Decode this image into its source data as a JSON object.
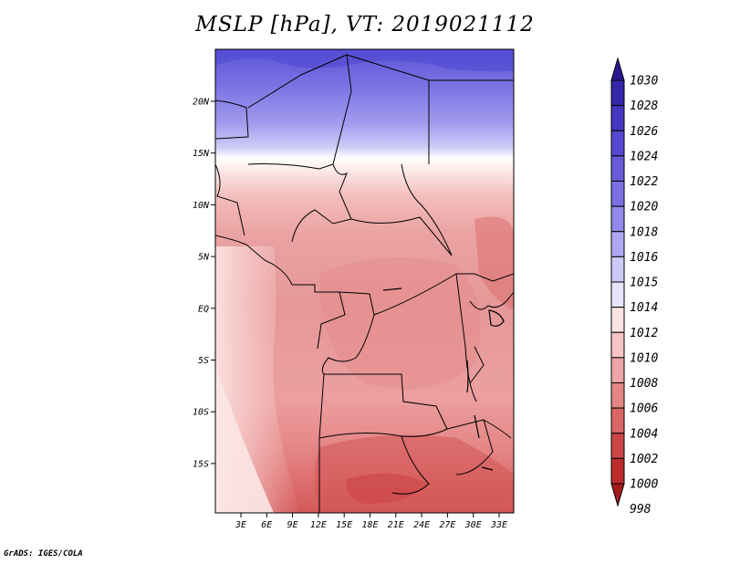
{
  "title": "MSLP [hPa], VT: 2019021112",
  "footer": "GrADS: IGES/COLA",
  "colors": {
    "frame": "#000000",
    "high": "#8f8ff0",
    "neutral": "#ffffff",
    "low": "#e07070"
  },
  "map": {
    "lat_ticks": [
      "20N",
      "15N",
      "10N",
      "5N",
      "EQ",
      "5S",
      "10S",
      "15S"
    ],
    "lon_ticks": [
      "3E",
      "6E",
      "9E",
      "12E",
      "15E",
      "18E",
      "21E",
      "24E",
      "27E",
      "30E",
      "33E"
    ]
  },
  "colorbar": {
    "labels": [
      "1030",
      "1028",
      "1026",
      "1024",
      "1022",
      "1020",
      "1018",
      "1016",
      "1015",
      "1014",
      "1012",
      "1010",
      "1008",
      "1006",
      "1004",
      "1002",
      "1000",
      "998"
    ],
    "colors": [
      "#2a1890",
      "#3527a8",
      "#4637c0",
      "#5648d0",
      "#6a5cd9",
      "#7d70e1",
      "#9389ea",
      "#afa8f1",
      "#ccc8f7",
      "#e6e4fb",
      "#fbe3e3",
      "#f6c4c4",
      "#eea5a5",
      "#e58686",
      "#d96565",
      "#cc4646",
      "#bc2c2c",
      "#a51b1b"
    ]
  }
}
